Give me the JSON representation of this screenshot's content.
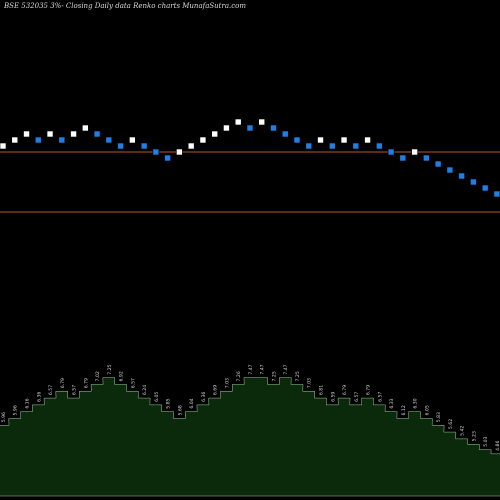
{
  "chart_data": {
    "type": "renko",
    "title": "BSE 532035 3%-  Closing Daily data  Renko  charts MunafaSutra.com",
    "bricks": [
      {
        "p": 1.0,
        "dir": "up"
      },
      {
        "p": 2.0,
        "dir": "up"
      },
      {
        "p": 3.0,
        "dir": "up"
      },
      {
        "p": 2.0,
        "dir": "down"
      },
      {
        "p": 3.0,
        "dir": "up"
      },
      {
        "p": 2.0,
        "dir": "down"
      },
      {
        "p": 3.0,
        "dir": "up"
      },
      {
        "p": 4.0,
        "dir": "up"
      },
      {
        "p": 3.0,
        "dir": "down"
      },
      {
        "p": 2.0,
        "dir": "down"
      },
      {
        "p": 1.0,
        "dir": "down"
      },
      {
        "p": 2.0,
        "dir": "up"
      },
      {
        "p": 1.0,
        "dir": "down"
      },
      {
        "p": 0.0,
        "dir": "down"
      },
      {
        "p": -1.0,
        "dir": "down"
      },
      {
        "p": 0.0,
        "dir": "up"
      },
      {
        "p": 1.0,
        "dir": "up"
      },
      {
        "p": 2.0,
        "dir": "up"
      },
      {
        "p": 3.0,
        "dir": "up"
      },
      {
        "p": 4.0,
        "dir": "up"
      },
      {
        "p": 5.0,
        "dir": "up"
      },
      {
        "p": 4.0,
        "dir": "down"
      },
      {
        "p": 5.0,
        "dir": "up"
      },
      {
        "p": 4.0,
        "dir": "down"
      },
      {
        "p": 3.0,
        "dir": "down"
      },
      {
        "p": 2.0,
        "dir": "down"
      },
      {
        "p": 1.0,
        "dir": "down"
      },
      {
        "p": 2.0,
        "dir": "up"
      },
      {
        "p": 1.0,
        "dir": "down"
      },
      {
        "p": 2.0,
        "dir": "up"
      },
      {
        "p": 1.0,
        "dir": "down"
      },
      {
        "p": 2.0,
        "dir": "up"
      },
      {
        "p": 1.0,
        "dir": "down"
      },
      {
        "p": 0.0,
        "dir": "down"
      },
      {
        "p": -1.0,
        "dir": "down"
      },
      {
        "p": 0.0,
        "dir": "up"
      },
      {
        "p": -1.0,
        "dir": "down"
      },
      {
        "p": -2.0,
        "dir": "down"
      },
      {
        "p": -3.0,
        "dir": "down"
      },
      {
        "p": -4.0,
        "dir": "down"
      },
      {
        "p": -5.0,
        "dir": "down"
      },
      {
        "p": -6.0,
        "dir": "down"
      },
      {
        "p": -7.0,
        "dir": "down"
      },
      {
        "p": -8.0,
        "dir": "down"
      },
      {
        "p": -9.0,
        "dir": "down"
      },
      {
        "p": -10.0,
        "dir": "down"
      },
      {
        "p": -11.0,
        "dir": "down"
      },
      {
        "p": -12.0,
        "dir": "down"
      },
      {
        "p": -13.0,
        "dir": "down"
      },
      {
        "p": -14.0,
        "dir": "down"
      },
      {
        "p": -15.0,
        "dir": "down"
      },
      {
        "p": -14.0,
        "dir": "up"
      },
      {
        "p": -13.0,
        "dir": "up"
      }
    ],
    "price_range": [
      -16,
      7
    ],
    "reference_levels": [
      0.0,
      -10.0
    ],
    "volume_labels": [
      "5.96",
      "5.96",
      "6.16",
      "6.36",
      "6.57",
      "6.79",
      "6.57",
      "6.79",
      "7.02",
      "7.25",
      "6.92",
      "6.57",
      "6.24",
      "6.05",
      "5.85",
      "5.68",
      "6.04",
      "6.36",
      "6.69",
      "7.03",
      "7.26",
      "7.47",
      "7.47",
      "7.25",
      "7.47",
      "7.25",
      "7.03",
      "6.81",
      "6.59",
      "6.79",
      "6.57",
      "6.79",
      "6.57",
      "6.33",
      "6.12",
      "6.30",
      "6.05",
      "5.83",
      "5.62",
      "5.42",
      "5.23",
      "5.03",
      "4.86",
      "4.67",
      "4.49",
      "4.31",
      "4.13",
      "3.96",
      "3.79",
      "3.62",
      "3.46",
      "3.32",
      "3.51"
    ],
    "volume_values": [
      52,
      57,
      62,
      67,
      72,
      77,
      72,
      77,
      82,
      87,
      82,
      77,
      72,
      67,
      62,
      57,
      62,
      67,
      72,
      77,
      82,
      87,
      87,
      82,
      87,
      82,
      77,
      72,
      67,
      72,
      67,
      72,
      67,
      62,
      57,
      62,
      57,
      52,
      47,
      42,
      38,
      34,
      31,
      27,
      23,
      20,
      17,
      14,
      11,
      8,
      5,
      3,
      8
    ],
    "volume_range": [
      0,
      100
    ],
    "colors": {
      "up_brick": "#ffffff",
      "down_brick": "#1e7fe6",
      "reference_line": "#b05a28",
      "volume_fill": "#0b2a0b",
      "volume_outline": "#9fd09f",
      "background": "#000000",
      "text": "#d9d9d9"
    }
  }
}
